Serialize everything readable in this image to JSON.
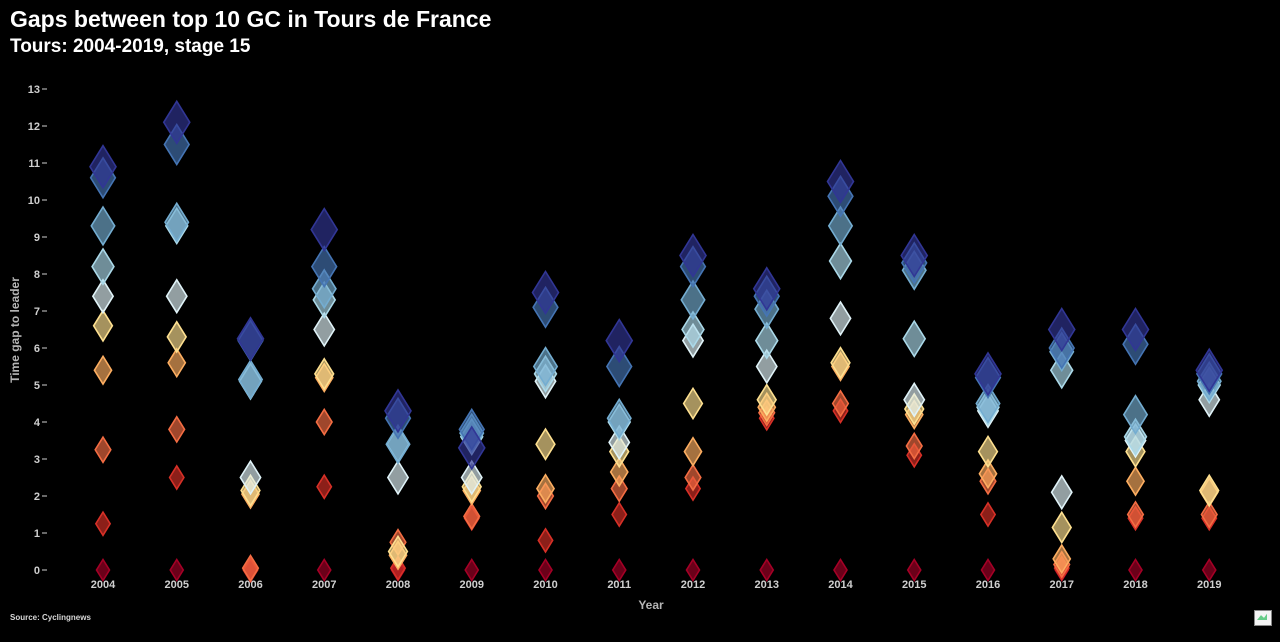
{
  "title": "Gaps between top 10 GC in Tours de France",
  "subtitle": "Tours: 2004-2019, stage 15",
  "source": "Source: Cyclingnews",
  "logo_icon": "image-placeholder-icon",
  "colors": {
    "background": "#000000",
    "palette": [
      "#a50026",
      "#d73027",
      "#f46d43",
      "#fdae61",
      "#fee090",
      "#e0f3f8",
      "#abd9e9",
      "#74add1",
      "#4575b4",
      "#313695"
    ]
  },
  "chart_data": {
    "type": "scatter",
    "marker": "diamond",
    "title": "Gaps between top 10 GC in Tours de France",
    "subtitle": "Tours: 2004-2019, stage 15",
    "xlabel": "Year",
    "ylabel": "Time gap to leader",
    "ylim": [
      0,
      13
    ],
    "yticks": [
      0,
      1,
      2,
      3,
      4,
      5,
      6,
      7,
      8,
      9,
      10,
      11,
      12,
      13
    ],
    "categories": [
      "2004",
      "2005",
      "2006",
      "2007",
      "2008",
      "2009",
      "2010",
      "2011",
      "2012",
      "2013",
      "2014",
      "2015",
      "2016",
      "2017",
      "2018",
      "2019"
    ],
    "grid": false,
    "legend": "none",
    "series": [
      {
        "values": [
          0,
          0,
          0,
          0,
          0,
          0,
          0,
          0,
          0,
          0,
          0,
          0,
          0,
          0,
          0,
          0
        ]
      },
      {
        "values": [
          1.25,
          2.5,
          0,
          2.25,
          0.05,
          1.4,
          0.8,
          1.5,
          2.2,
          4.1,
          4.3,
          3.1,
          1.5,
          0.05,
          1.4,
          1.4
        ]
      },
      {
        "values": [
          3.25,
          3.8,
          0.05,
          4.0,
          0.75,
          1.45,
          2.0,
          2.2,
          2.5,
          4.25,
          4.5,
          3.35,
          2.4,
          0.15,
          1.5,
          1.5
        ]
      },
      {
        "values": [
          5.4,
          5.6,
          2.05,
          5.2,
          0.4,
          2.15,
          2.2,
          2.65,
          3.2,
          4.4,
          5.5,
          4.2,
          2.6,
          0.3,
          2.4,
          2.1
        ]
      },
      {
        "values": [
          6.6,
          6.3,
          2.15,
          5.3,
          0.5,
          2.25,
          3.4,
          3.2,
          4.5,
          4.6,
          5.6,
          4.35,
          3.2,
          1.15,
          3.2,
          2.15
        ]
      },
      {
        "values": [
          7.4,
          7.4,
          2.5,
          6.5,
          2.5,
          2.5,
          5.1,
          3.45,
          6.2,
          5.5,
          6.8,
          4.6,
          4.3,
          2.1,
          3.5,
          4.6
        ]
      },
      {
        "values": [
          8.2,
          9.3,
          5.1,
          7.3,
          3.4,
          3.6,
          5.3,
          4.0,
          6.5,
          6.2,
          8.35,
          6.25,
          4.4,
          5.4,
          3.6,
          5.0
        ]
      },
      {
        "values": [
          9.3,
          9.4,
          5.15,
          7.6,
          3.4,
          3.7,
          5.5,
          4.1,
          7.3,
          7.05,
          9.3,
          8.1,
          4.5,
          5.9,
          4.2,
          5.1
        ]
      },
      {
        "values": [
          10.6,
          11.5,
          6.2,
          8.2,
          4.1,
          3.8,
          7.1,
          5.5,
          8.2,
          7.4,
          10.1,
          8.3,
          5.2,
          6.0,
          6.1,
          5.3
        ]
      },
      {
        "values": [
          10.9,
          12.1,
          6.25,
          9.2,
          4.3,
          3.3,
          7.5,
          6.2,
          8.5,
          7.6,
          10.5,
          8.5,
          5.3,
          6.5,
          6.5,
          5.4
        ]
      }
    ]
  }
}
